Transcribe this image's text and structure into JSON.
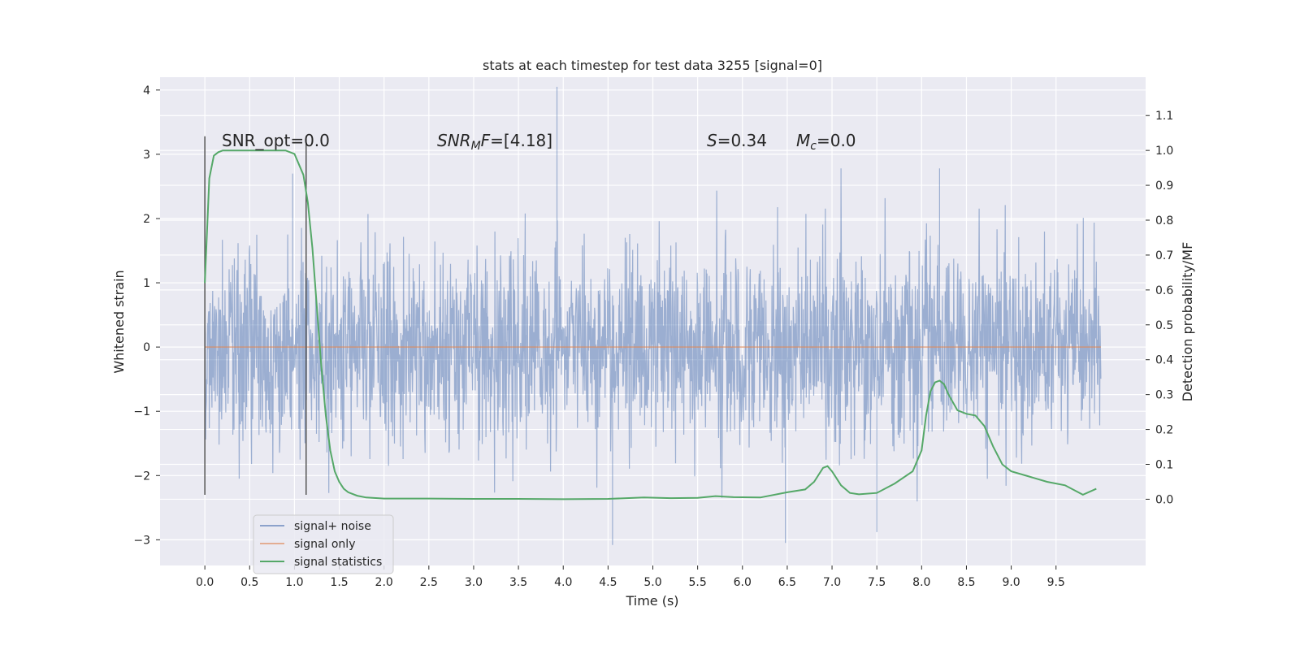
{
  "chart_data": {
    "type": "line",
    "title": "stats at each timestep for test data 3255 [signal=0]",
    "xlabel": "Time (s)",
    "ylabel": "Whitened strain",
    "y2label": "Detection probability/MF",
    "xlim": [
      -0.5,
      10.5
    ],
    "ylim": [
      -3.4,
      4.2
    ],
    "y2lim": [
      -0.19,
      1.21
    ],
    "xticks": [
      "0.0",
      "0.5",
      "1.0",
      "1.5",
      "2.0",
      "2.5",
      "3.0",
      "3.5",
      "4.0",
      "4.5",
      "5.0",
      "5.5",
      "6.0",
      "6.5",
      "7.0",
      "7.5",
      "8.0",
      "8.5",
      "9.0",
      "9.5"
    ],
    "yticks": [
      "4",
      "3",
      "2",
      "1",
      "0",
      "−1",
      "−2",
      "−3"
    ],
    "y2ticks": [
      "1.1",
      "1.0",
      "0.9",
      "0.8",
      "0.7",
      "0.6",
      "0.5",
      "0.4",
      "0.3",
      "0.2",
      "0.1",
      "0.0"
    ],
    "grid": true,
    "legend_position": "bottom-left",
    "annotations": {
      "snr_opt": "SNR_opt=0.0",
      "snr_mf_base": "SNR",
      "snr_mf_sub": "M",
      "snr_mf_italic": "F",
      "snr_mf_value": "=[4.18]",
      "s_symbol": "S",
      "s_value": "=0.34",
      "mc_symbol": "M",
      "mc_sub": "c",
      "mc_value": "=0.0"
    },
    "vertical_markers": [
      0.0,
      1.13
    ],
    "series": [
      {
        "name": "signal+ noise",
        "color": "#4c72b0",
        "axis": "left",
        "kind": "noise",
        "x_range": [
          0.0,
          10.0
        ],
        "approx_band": [
          -1.5,
          1.5
        ],
        "peak_spikes": [
          [
            3.93,
            4.05
          ],
          [
            4.55,
            -3.08
          ],
          [
            6.48,
            -3.05
          ],
          [
            7.5,
            -2.88
          ],
          [
            8.2,
            2.78
          ],
          [
            7.1,
            2.78
          ],
          [
            0.98,
            2.7
          ]
        ]
      },
      {
        "name": "signal only",
        "color": "#dd8452",
        "axis": "left",
        "x": [
          0.0,
          10.0
        ],
        "y": [
          0.0,
          0.0
        ]
      },
      {
        "name": "signal statistics",
        "color": "#55a868",
        "axis": "right",
        "x": [
          0.0,
          0.05,
          0.1,
          0.15,
          0.2,
          0.3,
          0.5,
          0.7,
          0.9,
          1.0,
          1.05,
          1.1,
          1.15,
          1.2,
          1.25,
          1.3,
          1.35,
          1.4,
          1.45,
          1.5,
          1.55,
          1.6,
          1.7,
          1.8,
          2.0,
          2.5,
          3.0,
          3.5,
          4.0,
          4.5,
          4.9,
          5.2,
          5.5,
          5.7,
          5.9,
          6.2,
          6.5,
          6.7,
          6.8,
          6.9,
          6.95,
          7.0,
          7.05,
          7.1,
          7.2,
          7.3,
          7.5,
          7.7,
          7.9,
          8.0,
          8.05,
          8.1,
          8.15,
          8.2,
          8.25,
          8.3,
          8.4,
          8.5,
          8.6,
          8.7,
          8.8,
          8.9,
          9.0,
          9.2,
          9.4,
          9.6,
          9.8,
          9.95
        ],
        "y": [
          0.62,
          0.92,
          0.985,
          0.995,
          1.0,
          1.0,
          1.0,
          1.0,
          1.0,
          0.99,
          0.96,
          0.93,
          0.85,
          0.72,
          0.55,
          0.38,
          0.24,
          0.14,
          0.08,
          0.05,
          0.03,
          0.02,
          0.01,
          0.005,
          0.002,
          0.002,
          0.001,
          0.001,
          0.0,
          0.001,
          0.005,
          0.003,
          0.004,
          0.009,
          0.006,
          0.005,
          0.02,
          0.028,
          0.05,
          0.09,
          0.095,
          0.08,
          0.06,
          0.04,
          0.018,
          0.014,
          0.018,
          0.045,
          0.08,
          0.14,
          0.24,
          0.31,
          0.335,
          0.34,
          0.33,
          0.3,
          0.255,
          0.245,
          0.24,
          0.21,
          0.15,
          0.1,
          0.08,
          0.065,
          0.05,
          0.04,
          0.013,
          0.03
        ]
      }
    ]
  }
}
